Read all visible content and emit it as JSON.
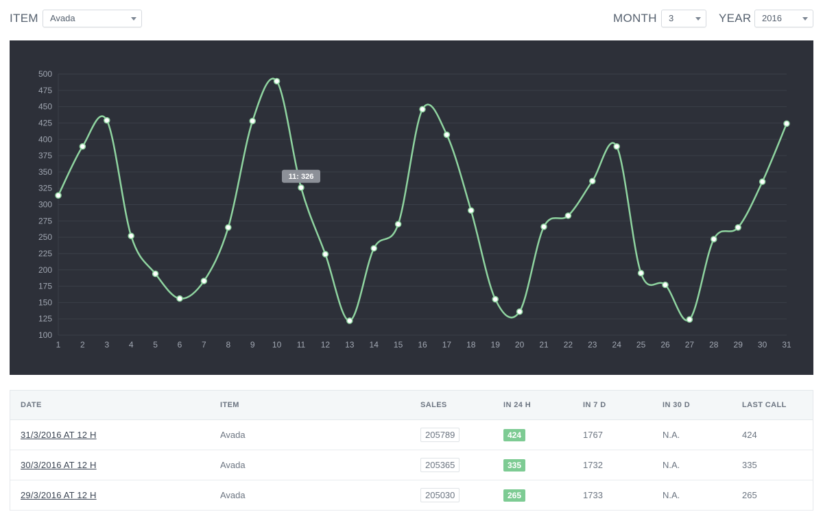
{
  "filters": {
    "item_label": "ITEM",
    "item_value": "Avada",
    "month_label": "MONTH",
    "month_value": "3",
    "year_label": "YEAR",
    "year_value": "2016"
  },
  "colors": {
    "panel_bg": "#2d3039",
    "line": "#8fd4a0",
    "badge_green": "#7dcb93"
  },
  "chart_data": {
    "type": "line",
    "x": [
      1,
      2,
      3,
      4,
      5,
      6,
      7,
      8,
      9,
      10,
      11,
      12,
      13,
      14,
      15,
      16,
      17,
      18,
      19,
      20,
      21,
      22,
      23,
      24,
      25,
      26,
      27,
      28,
      29,
      30,
      31
    ],
    "series": [
      {
        "values": [
          314,
          389,
          429,
          252,
          194,
          156,
          183,
          265,
          428,
          489,
          326,
          224,
          122,
          233,
          270,
          446,
          407,
          291,
          155,
          136,
          266,
          283,
          336,
          389,
          195,
          177,
          124,
          247,
          265,
          335,
          424
        ]
      }
    ],
    "ylim": [
      100,
      500
    ],
    "yticks": [
      100,
      125,
      150,
      175,
      200,
      225,
      250,
      275,
      300,
      325,
      350,
      375,
      400,
      425,
      450,
      475,
      500
    ],
    "grid": true,
    "tooltip": {
      "label": "11: 326",
      "x": 11
    }
  },
  "table": {
    "headers": [
      "DATE",
      "ITEM",
      "SALES",
      "IN 24 H",
      "IN 7 D",
      "IN 30 D",
      "LAST CALL"
    ],
    "rows": [
      {
        "date": "31/3/2016 AT 12 H",
        "item": "Avada",
        "sales": "205789",
        "in24": "424",
        "in7": "1767",
        "in30": "N.A.",
        "last": "424"
      },
      {
        "date": "30/3/2016 AT 12 H",
        "item": "Avada",
        "sales": "205365",
        "in24": "335",
        "in7": "1732",
        "in30": "N.A.",
        "last": "335"
      },
      {
        "date": "29/3/2016 AT 12 H",
        "item": "Avada",
        "sales": "205030",
        "in24": "265",
        "in7": "1733",
        "in30": "N.A.",
        "last": "265"
      }
    ]
  }
}
